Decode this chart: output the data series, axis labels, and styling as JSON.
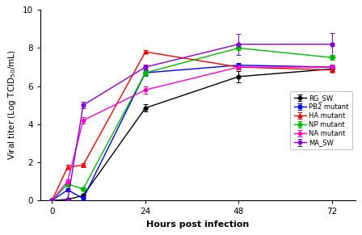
{
  "x": [
    0,
    4,
    8,
    24,
    48,
    72
  ],
  "series": {
    "RG_SW": {
      "y": [
        0,
        0.05,
        0.25,
        4.85,
        6.5,
        6.9
      ],
      "yerr": [
        0,
        0.0,
        0.1,
        0.2,
        0.3,
        0.1
      ],
      "color": "#000000",
      "marker": "o",
      "label": "RG_SW"
    },
    "PB2_mutant": {
      "y": [
        0,
        0.55,
        0.1,
        6.7,
        7.1,
        7.0
      ],
      "yerr": [
        0,
        0.05,
        0.05,
        0.12,
        0.12,
        0.1
      ],
      "color": "#0000EE",
      "marker": "s",
      "label": "PB2 mutant"
    },
    "HA_mutant": {
      "y": [
        0,
        1.75,
        1.85,
        7.8,
        7.0,
        6.85
      ],
      "yerr": [
        0,
        0.1,
        0.12,
        0.08,
        0.12,
        0.1
      ],
      "color": "#EE0000",
      "marker": "^",
      "label": "HA mutant"
    },
    "NP_mutant": {
      "y": [
        0,
        0.85,
        0.6,
        6.7,
        8.0,
        7.5
      ],
      "yerr": [
        0,
        0.12,
        0.1,
        0.18,
        0.12,
        0.12
      ],
      "color": "#00BB00",
      "marker": "D",
      "label": "NP mutant"
    },
    "NA_mutant": {
      "y": [
        0,
        1.0,
        4.2,
        5.8,
        7.0,
        7.0
      ],
      "yerr": [
        0,
        0.12,
        0.18,
        0.18,
        0.12,
        0.12
      ],
      "color": "#FF00CC",
      "marker": "p",
      "label": "NA mutant"
    },
    "MA_SW": {
      "y": [
        0,
        0.0,
        5.0,
        7.0,
        8.2,
        8.2
      ],
      "yerr": [
        0,
        0.04,
        0.18,
        0.12,
        0.55,
        0.6
      ],
      "color": "#8800CC",
      "marker": "o",
      "label": "MA_SW"
    }
  },
  "xlabel": "Hours post infection",
  "ylabel": "Viral titer (Log TCID$_{50}$/mL)",
  "xlim": [
    -3,
    78
  ],
  "ylim": [
    0,
    10
  ],
  "xticks": [
    0,
    24,
    48,
    72
  ],
  "yticks": [
    0,
    2,
    4,
    6,
    8,
    10
  ],
  "figsize": [
    4.48,
    2.91
  ],
  "dpi": 100
}
